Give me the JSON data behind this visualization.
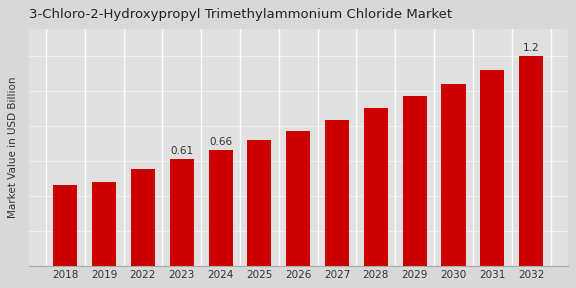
{
  "title": "3-Chloro-2-Hydroxypropyl Trimethylammonium Chloride Market",
  "ylabel": "Market Value in USD Billion",
  "categories": [
    "2018",
    "2019",
    "2022",
    "2023",
    "2024",
    "2025",
    "2026",
    "2027",
    "2028",
    "2029",
    "2030",
    "2031",
    "2032"
  ],
  "values": [
    0.46,
    0.48,
    0.55,
    0.61,
    0.66,
    0.72,
    0.77,
    0.83,
    0.9,
    0.97,
    1.04,
    1.12,
    1.2
  ],
  "bar_color": "#cc0000",
  "background_color": "#d8d8d8",
  "plot_bg_color": "#e0e0e0",
  "grid_color": "#f0f0f0",
  "labeled_indices": [
    3,
    4,
    12
  ],
  "labels": [
    "0.61",
    "0.66",
    "1.2"
  ],
  "ylim": [
    0,
    1.35
  ],
  "title_fontsize": 9.5,
  "axis_fontsize": 7.5,
  "label_fontsize": 7.5,
  "bar_width": 0.62
}
